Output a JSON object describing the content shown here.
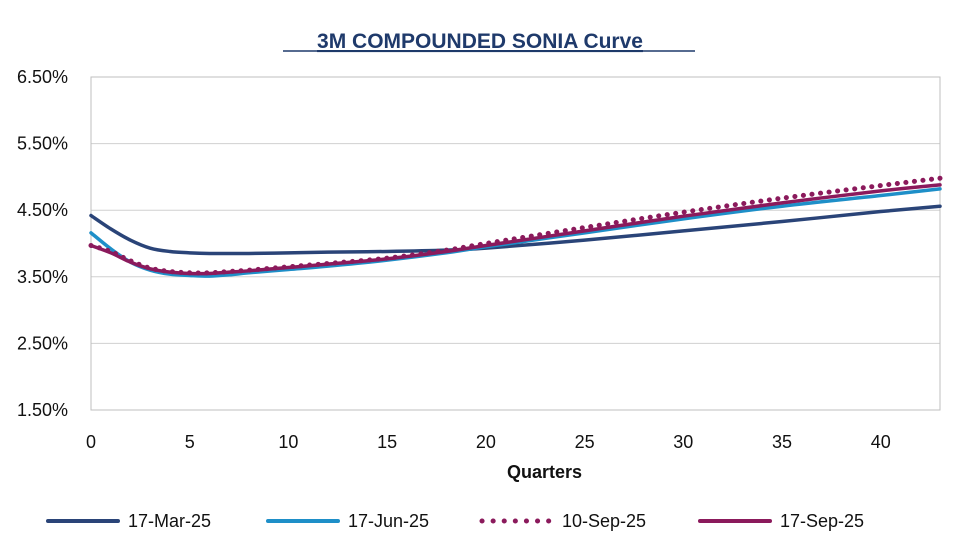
{
  "chart_data": {
    "type": "line",
    "title": "3M COMPOUNDED SONIA Curve",
    "xlabel": "Quarters",
    "ylabel": "",
    "xlim": [
      0,
      43
    ],
    "ylim": [
      1.5,
      6.5
    ],
    "x_ticks": [
      0,
      5,
      10,
      15,
      20,
      25,
      30,
      35,
      40
    ],
    "y_ticks": [
      1.5,
      2.5,
      3.5,
      4.5,
      5.5,
      6.5
    ],
    "y_tick_labels": [
      "1.50%",
      "2.50%",
      "3.50%",
      "4.50%",
      "5.50%",
      "6.50%"
    ],
    "grid": "horizontal",
    "legend_position": "bottom",
    "series": [
      {
        "name": "17-Mar-25",
        "color": "#2a4478",
        "style": "solid",
        "x": [
          0,
          1,
          2,
          3,
          4,
          5,
          6,
          7,
          8,
          10,
          12,
          15,
          18,
          20,
          25,
          30,
          35,
          40,
          43
        ],
        "values": [
          4.42,
          4.22,
          4.05,
          3.93,
          3.88,
          3.86,
          3.85,
          3.85,
          3.85,
          3.86,
          3.87,
          3.88,
          3.9,
          3.93,
          4.05,
          4.19,
          4.33,
          4.48,
          4.56
        ]
      },
      {
        "name": "17-Jun-25",
        "color": "#1e8fc8",
        "style": "solid",
        "x": [
          0,
          1,
          2,
          3,
          4,
          5,
          6,
          7,
          8,
          10,
          12,
          15,
          18,
          20,
          25,
          30,
          35,
          40,
          43
        ],
        "values": [
          4.16,
          3.92,
          3.72,
          3.6,
          3.54,
          3.52,
          3.51,
          3.53,
          3.56,
          3.61,
          3.66,
          3.75,
          3.86,
          3.95,
          4.16,
          4.37,
          4.56,
          4.72,
          4.82
        ]
      },
      {
        "name": "10-Sep-25",
        "color": "#8b1a5c",
        "style": "dotted",
        "x": [
          0,
          1,
          2,
          3,
          4,
          5,
          6,
          7,
          8,
          10,
          12,
          15,
          18,
          20,
          25,
          30,
          35,
          40,
          43
        ],
        "values": [
          3.97,
          3.88,
          3.74,
          3.63,
          3.58,
          3.56,
          3.56,
          3.58,
          3.6,
          3.65,
          3.7,
          3.78,
          3.9,
          4.0,
          4.24,
          4.47,
          4.68,
          4.87,
          4.98
        ]
      },
      {
        "name": "17-Sep-25",
        "color": "#8b1a5c",
        "style": "solid",
        "x": [
          0,
          1,
          2,
          3,
          4,
          5,
          6,
          7,
          8,
          10,
          12,
          15,
          18,
          20,
          25,
          30,
          35,
          40,
          43
        ],
        "values": [
          3.97,
          3.86,
          3.72,
          3.62,
          3.57,
          3.55,
          3.55,
          3.57,
          3.59,
          3.64,
          3.69,
          3.77,
          3.88,
          3.97,
          4.19,
          4.41,
          4.61,
          4.79,
          4.88
        ]
      }
    ]
  }
}
